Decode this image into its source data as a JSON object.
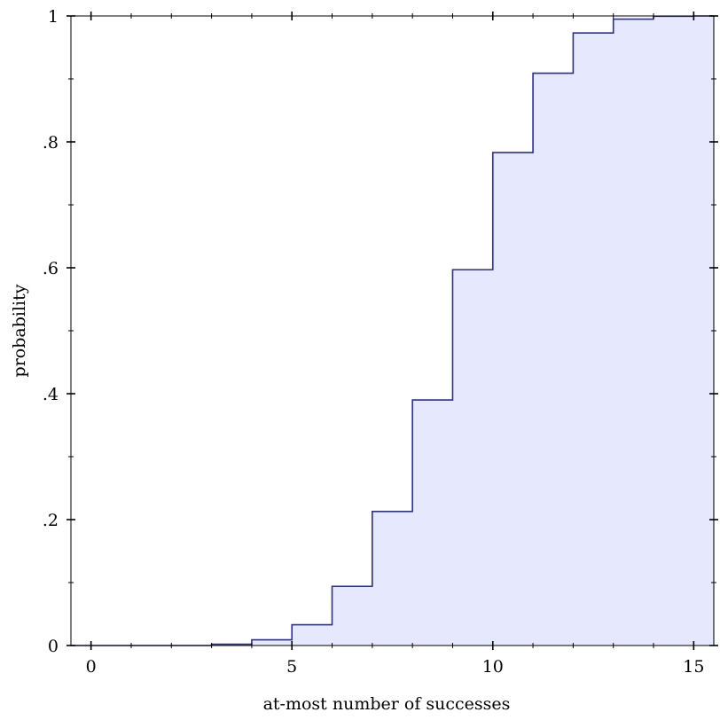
{
  "chart_data": {
    "type": "area",
    "step": true,
    "xlabel": "at-most number of successes",
    "ylabel": "probability",
    "xlim": [
      -0.5,
      15.5
    ],
    "ylim": [
      0,
      1
    ],
    "x_ticks": [
      0,
      5,
      10,
      15
    ],
    "x_tick_labels": [
      "0",
      "5",
      "10",
      "15"
    ],
    "y_ticks": [
      0,
      0.2,
      0.4,
      0.6,
      0.8,
      1
    ],
    "y_tick_labels": [
      "0",
      ".2",
      ".4",
      ".6",
      ".8",
      "1"
    ],
    "grid": false,
    "series": [
      {
        "x": [
          0,
          1,
          2,
          3,
          4,
          5,
          6,
          7,
          8,
          9,
          10,
          11,
          12,
          13,
          14,
          15
        ],
        "values": [
          0.0,
          0.0,
          0.0,
          0.002,
          0.009,
          0.033,
          0.094,
          0.213,
          0.39,
          0.597,
          0.783,
          0.909,
          0.973,
          0.995,
          0.9995,
          1.0
        ]
      }
    ],
    "colors": {
      "line": "#2b2f8f",
      "fill": "#e6e9fd"
    }
  }
}
